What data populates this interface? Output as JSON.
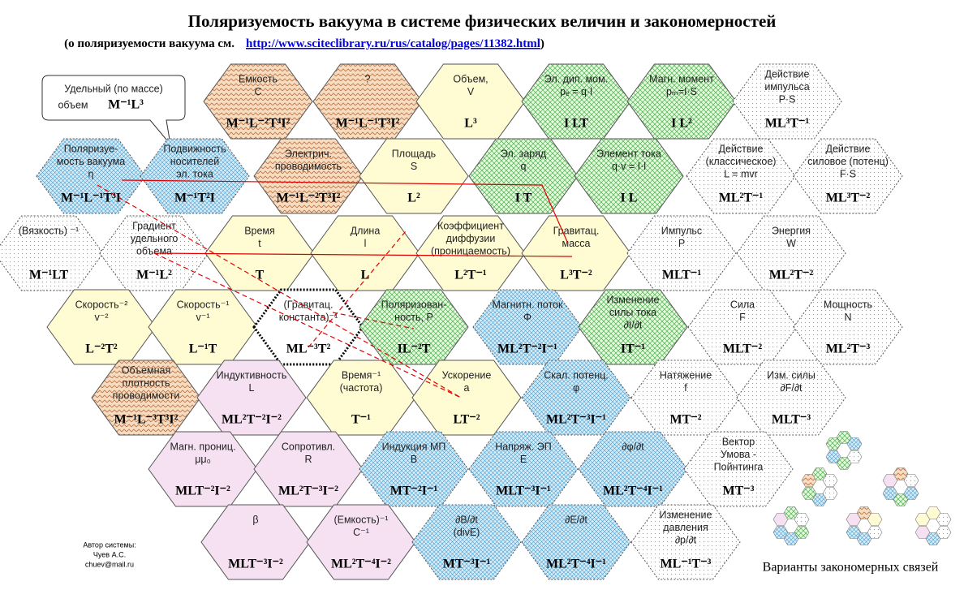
{
  "header": {
    "title": "Поляризуемость вакуума в системе физических величин и закономерностей",
    "subtitle_before": "(о поляризуемости вакуума см.",
    "link": "http://www.sciteclibrary.ru/rus/catalog/pages/11382.html",
    "subtitle_after": ")"
  },
  "callout": {
    "lines": [
      "Удельный (по массе)",
      "объем"
    ],
    "dim": "M⁻¹L³"
  },
  "rows": [
    [
      {
        "lines": [
          "Емкость",
          "C"
        ],
        "dim": "M⁻¹L⁻²T⁴I²",
        "kind": "brown"
      },
      {
        "lines": [
          "?"
        ],
        "dim": "M⁻¹L⁻¹T³I²",
        "kind": "brown"
      },
      {
        "lines": [
          "Объем,",
          "V"
        ],
        "dim": "L³",
        "kind": "yellow"
      },
      {
        "lines": [
          "Эл. дип. мом.",
          "pₑ = q·l"
        ],
        "dim": "I LT",
        "kind": "green"
      },
      {
        "lines": [
          "Магн. момент",
          "pₘ=I·S"
        ],
        "dim": "I L²",
        "kind": "green"
      },
      {
        "lines": [
          "Действие",
          "импульса",
          "P·S"
        ],
        "dim": "ML³T⁻¹",
        "kind": "white"
      }
    ],
    [
      {
        "lines": [
          "Поляризуе-",
          "мость вакуума",
          "η"
        ],
        "dim": "M⁻¹L⁻¹T³I",
        "kind": "blue"
      },
      {
        "lines": [
          "Подвижность",
          "носителей",
          "эл. тока"
        ],
        "dim": "M⁻¹T²I",
        "kind": "blue"
      },
      {
        "lines": [
          "Электрич.",
          "проводимость"
        ],
        "dim": "M⁻¹L⁻²T³I²",
        "kind": "brown"
      },
      {
        "lines": [
          "Площадь",
          "S"
        ],
        "dim": "L²",
        "kind": "yellow"
      },
      {
        "lines": [
          "Эл. заряд",
          "q"
        ],
        "dim": "I T",
        "kind": "green"
      },
      {
        "lines": [
          "Элемент тока",
          "q·v = I·l"
        ],
        "dim": "I L",
        "kind": "green"
      },
      {
        "lines": [
          "Действие",
          "(классическое)",
          "L = mvr"
        ],
        "dim": "ML²T⁻¹",
        "kind": "white"
      },
      {
        "lines": [
          "Действие",
          "силовое (потенц)",
          "F·S"
        ],
        "dim": "ML³T⁻²",
        "kind": "white"
      }
    ],
    [
      {
        "lines": [
          "(Вязкость) ⁻¹"
        ],
        "dim": "M⁻¹LT",
        "kind": "white"
      },
      {
        "lines": [
          "Градиент",
          "удельного",
          "объема"
        ],
        "dim": "M⁻¹L²",
        "kind": "white"
      },
      {
        "lines": [
          "Время",
          "t"
        ],
        "dim": "T",
        "kind": "yellow"
      },
      {
        "lines": [
          "Длина",
          "l"
        ],
        "dim": "L",
        "kind": "yellow"
      },
      {
        "lines": [
          "Коэффициент",
          "диффузии",
          "(проницаемость)"
        ],
        "dim": "L²T⁻¹",
        "kind": "yellow"
      },
      {
        "lines": [
          "Гравитац.",
          "масса"
        ],
        "dim": "L³T⁻²",
        "kind": "yellow"
      },
      {
        "lines": [
          "Импульс",
          "P"
        ],
        "dim": "MLT⁻¹",
        "kind": "white"
      },
      {
        "lines": [
          "Энергия",
          "W"
        ],
        "dim": "ML²T⁻²",
        "kind": "white"
      }
    ],
    [
      {
        "lines": [
          "Скорость⁻²",
          "v⁻²"
        ],
        "dim": "L⁻²T²",
        "kind": "yellow"
      },
      {
        "lines": [
          "Скорость⁻¹",
          "v⁻¹"
        ],
        "dim": "L⁻¹T",
        "kind": "yellow"
      },
      {
        "lines": [
          "(Гравитац.",
          "константа)⁻¹"
        ],
        "dim": "ML⁻³T²",
        "kind": "bold"
      },
      {
        "lines": [
          "Поляризован-",
          "ность, P"
        ],
        "dim": "IL⁻²T",
        "kind": "green"
      },
      {
        "lines": [
          "Магнитн. поток",
          "Φ"
        ],
        "dim": "ML²T⁻²I⁻¹",
        "kind": "blue"
      },
      {
        "lines": [
          "Изменение",
          "силы тока",
          "∂I/∂t"
        ],
        "dim": "IT⁻¹",
        "kind": "green"
      },
      {
        "lines": [
          "Сила",
          "F"
        ],
        "dim": "MLT⁻²",
        "kind": "white"
      },
      {
        "lines": [
          "Мощность",
          "N"
        ],
        "dim": "ML²T⁻³",
        "kind": "white"
      }
    ],
    [
      {
        "lines": [
          "Объемная",
          "плотность",
          "проводимости"
        ],
        "dim": "M⁻¹L⁻³T³I²",
        "kind": "brown"
      },
      {
        "lines": [
          "Индуктивность",
          "L"
        ],
        "dim": "ML²T⁻²I⁻²",
        "kind": "pink"
      },
      {
        "lines": [
          "Время⁻¹",
          "(частота)"
        ],
        "dim": "T⁻¹",
        "kind": "yellow"
      },
      {
        "lines": [
          "Ускорение",
          "a"
        ],
        "dim": "LT⁻²",
        "kind": "yellow"
      },
      {
        "lines": [
          "Скал. потенц.",
          "φ"
        ],
        "dim": "ML²T⁻³I⁻¹",
        "kind": "blue"
      },
      {
        "lines": [
          "Натяжение",
          "f"
        ],
        "dim": "MT⁻²",
        "kind": "white"
      },
      {
        "lines": [
          "Изм. силы",
          "∂F/∂t"
        ],
        "dim": "MLT⁻³",
        "kind": "white"
      }
    ],
    [
      {
        "lines": [
          "Магн. прониц.",
          "μμ₀"
        ],
        "dim": "MLT⁻²I⁻²",
        "kind": "pink"
      },
      {
        "lines": [
          "Сопротивл.",
          "R"
        ],
        "dim": "ML²T⁻³I⁻²",
        "kind": "pink"
      },
      {
        "lines": [
          "Индукция МП",
          "B"
        ],
        "dim": "MT⁻²I⁻¹",
        "kind": "blue"
      },
      {
        "lines": [
          "Напряж. ЭП",
          "E"
        ],
        "dim": "MLT⁻³I⁻¹",
        "kind": "blue"
      },
      {
        "lines": [
          "∂φ/∂t"
        ],
        "dim": "ML²T⁻⁴I⁻¹",
        "kind": "blue"
      },
      {
        "lines": [
          "Вектор",
          "Умова -",
          "Пойнтинга"
        ],
        "dim": "MT⁻³",
        "kind": "white"
      }
    ],
    [
      {
        "lines": [
          "β"
        ],
        "dim": "MLT⁻³I⁻²",
        "kind": "pink"
      },
      {
        "lines": [
          "(Емкость)⁻¹",
          "C⁻¹"
        ],
        "dim": "ML²T⁻⁴I⁻²",
        "kind": "pink"
      },
      {
        "lines": [
          "∂B/∂t",
          "(divE)"
        ],
        "dim": "MT⁻³I⁻¹",
        "kind": "blue"
      },
      {
        "lines": [
          "∂E/∂t"
        ],
        "dim": "ML²T⁻⁴I⁻¹",
        "kind": "blue"
      },
      {
        "lines": [
          "Изменение",
          "давления",
          "∂p/∂t"
        ],
        "dim": "ML⁻¹T⁻³",
        "kind": "white"
      }
    ]
  ],
  "author": [
    "Автор системы:",
    "Чуев А.С.",
    "chuev@mail.ru"
  ],
  "variants_caption": "Варианты закономерных связей"
}
